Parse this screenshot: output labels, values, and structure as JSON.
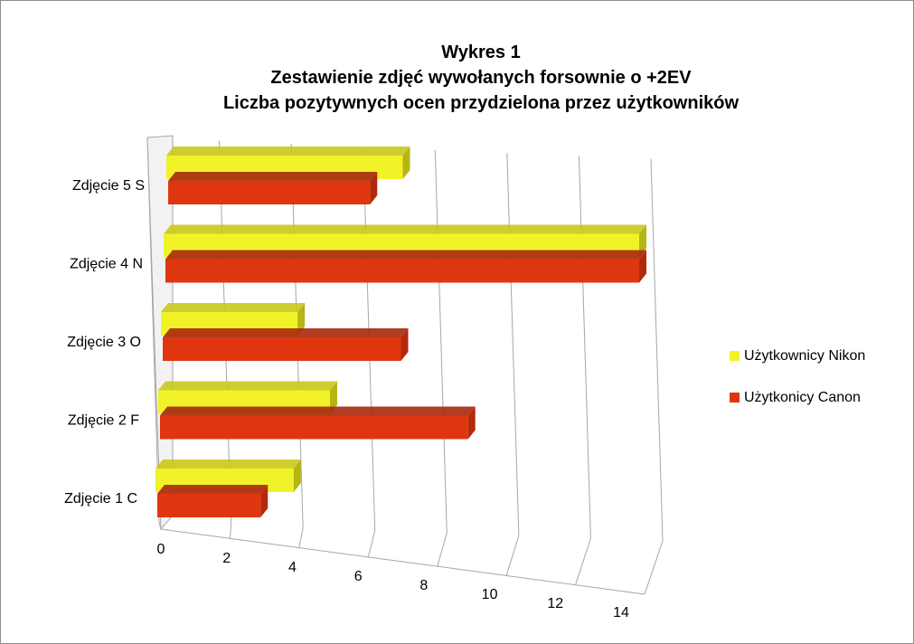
{
  "colors": {
    "nikon": "#f2f228",
    "nikon_top": "#c9c91a",
    "nikon_side": "#b5b514",
    "canon": "#e03610",
    "canon_top": "#a8280a",
    "canon_side": "#b22a0b",
    "grid": "#a6a6a6"
  },
  "chart_data": {
    "type": "bar",
    "orientation": "horizontal",
    "style": "3d-clustered",
    "title": [
      "Wykres 1",
      "Zestawienie zdjęć wywołanych forsownie o +2EV",
      "Liczba pozytywnych ocen przydzielona przez użytkowników"
    ],
    "categories": [
      "Zdjęcie 1 C",
      "Zdjęcie 2 F",
      "Zdjęcie 3 O",
      "Zdjęcie 4 N",
      "Zdjęcie 5 S"
    ],
    "series": [
      {
        "name": "Użytkownicy Nikon",
        "values": [
          4,
          5,
          4,
          14,
          7
        ]
      },
      {
        "name": "Użytkonicy Canon",
        "values": [
          3,
          9,
          7,
          14,
          6
        ]
      }
    ],
    "xlim": [
      0,
      14
    ],
    "xticks": [
      "0",
      "2",
      "4",
      "6",
      "8",
      "10",
      "12",
      "14"
    ],
    "grid": true,
    "legend": "right"
  }
}
